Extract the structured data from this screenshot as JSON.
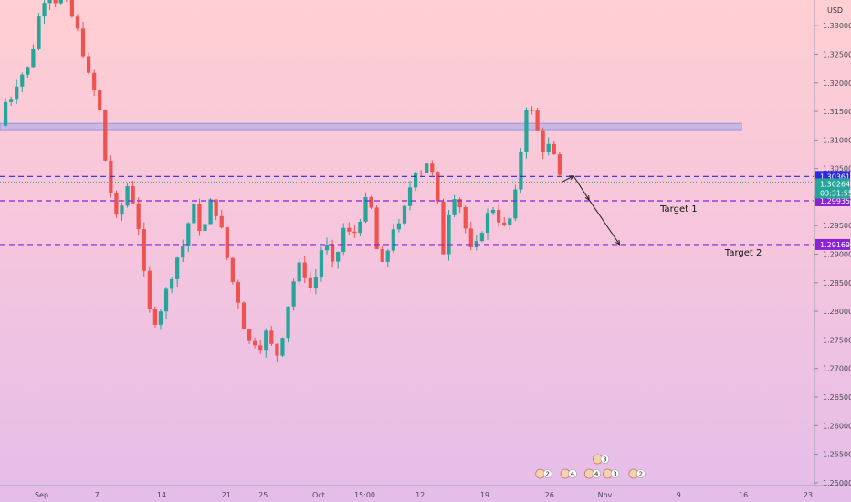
{
  "chart_data": {
    "type": "candlestick",
    "currency_label": "USD",
    "y_ticks": [
      "1.33000",
      "1.32500",
      "1.32000",
      "1.31500",
      "1.31000",
      "1.30500",
      "1.30000",
      "1.29500",
      "1.29000",
      "1.28500",
      "1.28000",
      "1.27500",
      "1.27000",
      "1.26500",
      "1.26000",
      "1.25500",
      "1.25000"
    ],
    "y_range": [
      1.2495,
      1.3345
    ],
    "x_labels": [
      {
        "label": "Sep",
        "day": 0
      },
      {
        "label": "7",
        "day": 6
      },
      {
        "label": "14",
        "day": 13
      },
      {
        "label": "21",
        "day": 20
      },
      {
        "label": "25",
        "day": 24
      },
      {
        "label": "Oct",
        "day": 30
      },
      {
        "label": "15:00",
        "day": 35
      },
      {
        "label": "12",
        "day": 41
      },
      {
        "label": "19",
        "day": 48
      },
      {
        "label": "26",
        "day": 55
      },
      {
        "label": "Nov",
        "day": 61
      },
      {
        "label": "9",
        "day": 69
      },
      {
        "label": "16",
        "day": 76
      },
      {
        "label": "23",
        "day": 83
      }
    ],
    "x_range": [
      -4.5,
      83.7
    ],
    "candle_path": [
      [
        -4.5,
        1.3125
      ],
      [
        -4,
        1.3165
      ],
      [
        -3.3,
        1.3175
      ],
      [
        -2.5,
        1.321
      ],
      [
        -1.5,
        1.3225
      ],
      [
        -0.8,
        1.327
      ],
      [
        -0.3,
        1.3315
      ],
      [
        0.3,
        1.3348
      ],
      [
        0.8,
        1.3365
      ],
      [
        1.5,
        1.3345
      ],
      [
        2.2,
        1.3355
      ],
      [
        3,
        1.3325
      ],
      [
        3.6,
        1.3305
      ],
      [
        4.3,
        1.327
      ],
      [
        5,
        1.3215
      ],
      [
        5.7,
        1.3185
      ],
      [
        6.3,
        1.315
      ],
      [
        6.8,
        1.3075
      ],
      [
        7.3,
        1.3025
      ],
      [
        7.8,
        1.2985
      ],
      [
        8.3,
        1.2945
      ],
      [
        8.8,
        1.2995
      ],
      [
        9.3,
        1.302
      ],
      [
        9.8,
        1.3
      ],
      [
        10.3,
        1.297
      ],
      [
        10.8,
        1.2915
      ],
      [
        11.2,
        1.2845
      ],
      [
        11.7,
        1.28
      ],
      [
        12.3,
        1.2785
      ],
      [
        12.9,
        1.2805
      ],
      [
        13.5,
        1.2835
      ],
      [
        14.1,
        1.2865
      ],
      [
        14.7,
        1.2895
      ],
      [
        15.3,
        1.2915
      ],
      [
        15.9,
        1.2955
      ],
      [
        16.4,
        1.2985
      ],
      [
        16.9,
        1.2965
      ],
      [
        17.4,
        1.292
      ],
      [
        17.9,
        1.297
      ],
      [
        18.4,
        1.2995
      ],
      [
        19,
        1.297
      ],
      [
        19.6,
        1.2935
      ],
      [
        20.2,
        1.2885
      ],
      [
        20.8,
        1.2845
      ],
      [
        21.4,
        1.2815
      ],
      [
        21.9,
        1.2775
      ],
      [
        22.4,
        1.2745
      ],
      [
        23,
        1.275
      ],
      [
        23.6,
        1.2735
      ],
      [
        24.2,
        1.2765
      ],
      [
        24.8,
        1.2745
      ],
      [
        25.3,
        1.2715
      ],
      [
        25.9,
        1.2745
      ],
      [
        26.4,
        1.2785
      ],
      [
        26.9,
        1.283
      ],
      [
        27.5,
        1.2865
      ],
      [
        28.1,
        1.2885
      ],
      [
        28.7,
        1.2855
      ],
      [
        29.3,
        1.2835
      ],
      [
        29.9,
        1.2875
      ],
      [
        30.5,
        1.2925
      ],
      [
        31.1,
        1.2905
      ],
      [
        31.7,
        1.2865
      ],
      [
        32.3,
        1.2925
      ],
      [
        32.9,
        1.2955
      ],
      [
        33.5,
        1.2925
      ],
      [
        34.1,
        1.2945
      ],
      [
        34.7,
        1.2975
      ],
      [
        35.2,
        1.2995
      ],
      [
        35.8,
        1.2975
      ],
      [
        36.4,
        1.2895
      ],
      [
        37,
        1.2875
      ],
      [
        37.6,
        1.2915
      ],
      [
        38.2,
        1.2955
      ],
      [
        38.8,
        1.2945
      ],
      [
        39.4,
        1.2985
      ],
      [
        40,
        1.3025
      ],
      [
        40.6,
        1.3055
      ],
      [
        41.2,
        1.3045
      ],
      [
        41.8,
        1.3065
      ],
      [
        42.4,
        1.3035
      ],
      [
        43,
        1.2975
      ],
      [
        43.5,
        1.2905
      ],
      [
        44.1,
        1.2975
      ],
      [
        44.7,
        1.3005
      ],
      [
        45.3,
        1.2985
      ],
      [
        45.9,
        1.2945
      ],
      [
        46.5,
        1.2905
      ],
      [
        47.1,
        1.2915
      ],
      [
        47.7,
        1.2945
      ],
      [
        48.2,
        1.2965
      ],
      [
        48.8,
        1.2985
      ],
      [
        49.4,
        1.2965
      ],
      [
        50,
        1.2945
      ],
      [
        50.6,
        1.2955
      ],
      [
        51.1,
        1.2985
      ],
      [
        51.7,
        1.3045
      ],
      [
        52.3,
        1.3155
      ],
      [
        52.8,
        1.3165
      ],
      [
        53.3,
        1.3135
      ],
      [
        53.9,
        1.3105
      ],
      [
        54.5,
        1.3075
      ],
      [
        55.1,
        1.3095
      ],
      [
        55.7,
        1.3055
      ],
      [
        56.2,
        1.3026
      ]
    ],
    "levels": [
      {
        "price": 1.30361,
        "label": "1.30361",
        "color": "#2a2ae0"
      },
      {
        "price": 1.29935,
        "label": "1.29935",
        "color": "#8a22d6"
      },
      {
        "price": 1.29169,
        "label": "1.29169",
        "color": "#8a22d6"
      }
    ],
    "current_price": {
      "price": 1.30264,
      "label": "1.30264",
      "countdown": "03:31:55",
      "color": "#26a69a"
    },
    "zone": {
      "price_low": 1.3118,
      "price_high": 1.3129,
      "day_start": -4.5,
      "day_end": 75.8
    },
    "targets": [
      {
        "label": "Target 1",
        "day": 67,
        "price": 1.29935
      },
      {
        "label": "Target 2",
        "day": 74,
        "price": 1.29169
      }
    ],
    "projection": [
      [
        56.3,
        1.3026
      ],
      [
        57.6,
        1.3037
      ],
      [
        59.3,
        1.2995
      ],
      [
        62.6,
        1.29169
      ]
    ],
    "events": [
      {
        "label": "2",
        "day": 54.5,
        "row": 0
      },
      {
        "label": "4",
        "day": 57.2,
        "row": 0
      },
      {
        "label": "4",
        "day": 59.8,
        "row": 0
      },
      {
        "label": "3",
        "day": 61.8,
        "row": 0
      },
      {
        "label": "2",
        "day": 64.6,
        "row": 0
      },
      {
        "label": "3",
        "day": 60.7,
        "row": 1
      }
    ]
  }
}
